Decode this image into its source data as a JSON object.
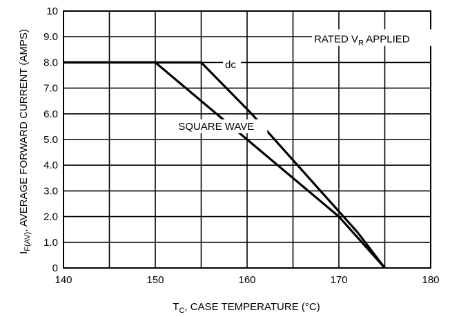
{
  "chart_data": {
    "type": "line",
    "xlabel": {
      "main": "T",
      "sub": "C",
      "rest": ", CASE TEMPERATURE (°C)"
    },
    "ylabel": {
      "main": "I",
      "sub": "F(AV)",
      "rest": ", AVERAGE FORWARD CURRENT (AMPS)"
    },
    "xlim": [
      140,
      180
    ],
    "ylim": [
      0,
      10
    ],
    "x_ticks": [
      140,
      150,
      160,
      170,
      180
    ],
    "x_tick_labels": [
      "140",
      "150",
      "160",
      "170",
      "180"
    ],
    "y_ticks": [
      0,
      1,
      2,
      3,
      4,
      5,
      6,
      7,
      8,
      9,
      10
    ],
    "y_tick_labels": [
      "0",
      "1.0",
      "2.0",
      "3.0",
      "4.0",
      "5.0",
      "6.0",
      "7.0",
      "8.0",
      "9.0",
      "10"
    ],
    "x_minor_grid": [
      145,
      155,
      165,
      175
    ],
    "grid": true,
    "series": [
      {
        "name": "dc",
        "x": [
          140,
          155,
          160.5,
          164,
          168,
          172,
          175
        ],
        "y": [
          8.0,
          8.0,
          6.0,
          4.6,
          3.0,
          1.4,
          0
        ]
      },
      {
        "name": "SQUARE WAVE",
        "x": [
          140,
          150,
          170,
          175
        ],
        "y": [
          8.0,
          8.0,
          2.0,
          0
        ]
      }
    ],
    "annotations": [
      {
        "text": "dc",
        "x": 157.6,
        "y": 7.78
      },
      {
        "text": "SQUARE WAVE",
        "x": 152.5,
        "y": 5.38
      },
      {
        "main": "RATED V",
        "sub": "R",
        "rest": " APPLIED",
        "x": 167.3,
        "y": 8.78
      }
    ]
  }
}
